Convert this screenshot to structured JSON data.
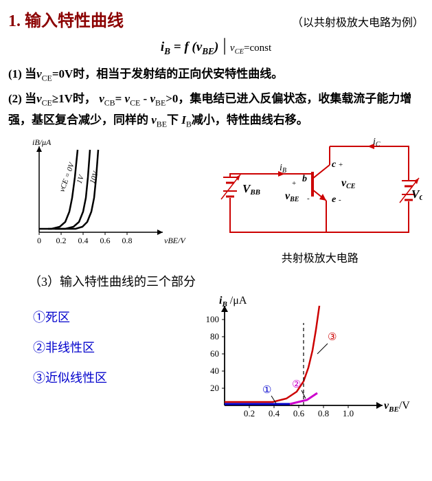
{
  "title": {
    "number": "1.",
    "text": "输入特性曲线",
    "subtitle": "（以共射极放大电路为例）",
    "color": "#8b0000"
  },
  "equation": {
    "lhs": "i",
    "lhs_sub": "B",
    "eq": "= f (v",
    "arg_sub": "BE",
    "close": ")",
    "bar": "|",
    "cond": "v",
    "cond_sub": "CE",
    "cond_tail": "=const"
  },
  "para1": {
    "lead": "(1) 当",
    "v1": "v",
    "v1sub": "CE",
    "mid1": "=0V时，相当于发射结的正向伏安特性曲线。"
  },
  "para2": {
    "lead": "(2) 当",
    "v1": "v",
    "v1sub": "CE",
    "mid1": "≥1V时， ",
    "v2": "v",
    "v2sub": "CB",
    "mid2": "= ",
    "v3": "v",
    "v3sub": "CE",
    "mid3": " - ",
    "v4": "v",
    "v4sub": "BE",
    "mid4": ">0，集电结已进入反偏状态，收集载流子能力增强，基区复合减少，同样的",
    "v5": "v",
    "v5sub": "BE",
    "mid5": "下 ",
    "I": "I",
    "Isub": "B",
    "mid6": "减小，特性曲线右移。"
  },
  "chart1": {
    "ylabel": "iB/μA",
    "xlabel": "vBE/V",
    "xticks": [
      "0",
      "0.2",
      "0.4",
      "0.6",
      "0.8"
    ],
    "curve_labels": [
      "vCE = 0V",
      "1V",
      "10V"
    ],
    "curves": [
      [
        [
          42,
          135
        ],
        [
          60,
          135
        ],
        [
          72,
          132
        ],
        [
          80,
          125
        ],
        [
          86,
          110
        ],
        [
          90,
          90
        ],
        [
          94,
          60
        ],
        [
          98,
          20
        ]
      ],
      [
        [
          55,
          135
        ],
        [
          80,
          135
        ],
        [
          92,
          132
        ],
        [
          100,
          125
        ],
        [
          106,
          110
        ],
        [
          110,
          90
        ],
        [
          113,
          60
        ],
        [
          116,
          20
        ]
      ],
      [
        [
          65,
          135
        ],
        [
          95,
          135
        ],
        [
          105,
          132
        ],
        [
          112,
          125
        ],
        [
          118,
          110
        ],
        [
          122,
          90
        ],
        [
          125,
          60
        ],
        [
          128,
          20
        ]
      ]
    ],
    "colors": {
      "axes": "#000000",
      "curves": "#000000"
    }
  },
  "circuit": {
    "labels": {
      "iB": "iB",
      "iC": "iC",
      "b": "b",
      "c": "c",
      "e": "e",
      "vCE": "vCE",
      "vBE": "vBE",
      "VBB": "VBB",
      "VCC": "VCC",
      "plus": "+",
      "minus": "-"
    },
    "caption": "共射极放大电路",
    "color": "#cc0000"
  },
  "subheading": "（3）输入特性曲线的三个部分",
  "regions": {
    "items": [
      "①死区",
      "②非线性区",
      "③近似线性区"
    ],
    "color": "#0000cc"
  },
  "chart2": {
    "ylabel_i": "i",
    "ylabel_sub": "B",
    "ylabel_unit": " /μA",
    "xlabel_v": "v",
    "xlabel_sub": "BE",
    "xlabel_unit": "/V",
    "yticks": [
      "20",
      "40",
      "60",
      "80",
      "100"
    ],
    "xticks": [
      "0.2",
      "0.4",
      "0.6",
      "0.8",
      "1.0"
    ],
    "markers": {
      "one": "①",
      "two": "②",
      "three": "③"
    },
    "colors": {
      "axes": "#000000",
      "region1": "#0000cc",
      "region2": "#cc00cc",
      "curve": "#cc0000",
      "marker3": "#cc0000",
      "dashed": "#000000"
    },
    "curve": [
      [
        40,
        155
      ],
      [
        80,
        155
      ],
      [
        110,
        155
      ],
      [
        130,
        150
      ],
      [
        145,
        140
      ],
      [
        155,
        125
      ],
      [
        162,
        105
      ],
      [
        168,
        80
      ],
      [
        173,
        50
      ],
      [
        178,
        15
      ]
    ],
    "dashed_x": 155
  }
}
